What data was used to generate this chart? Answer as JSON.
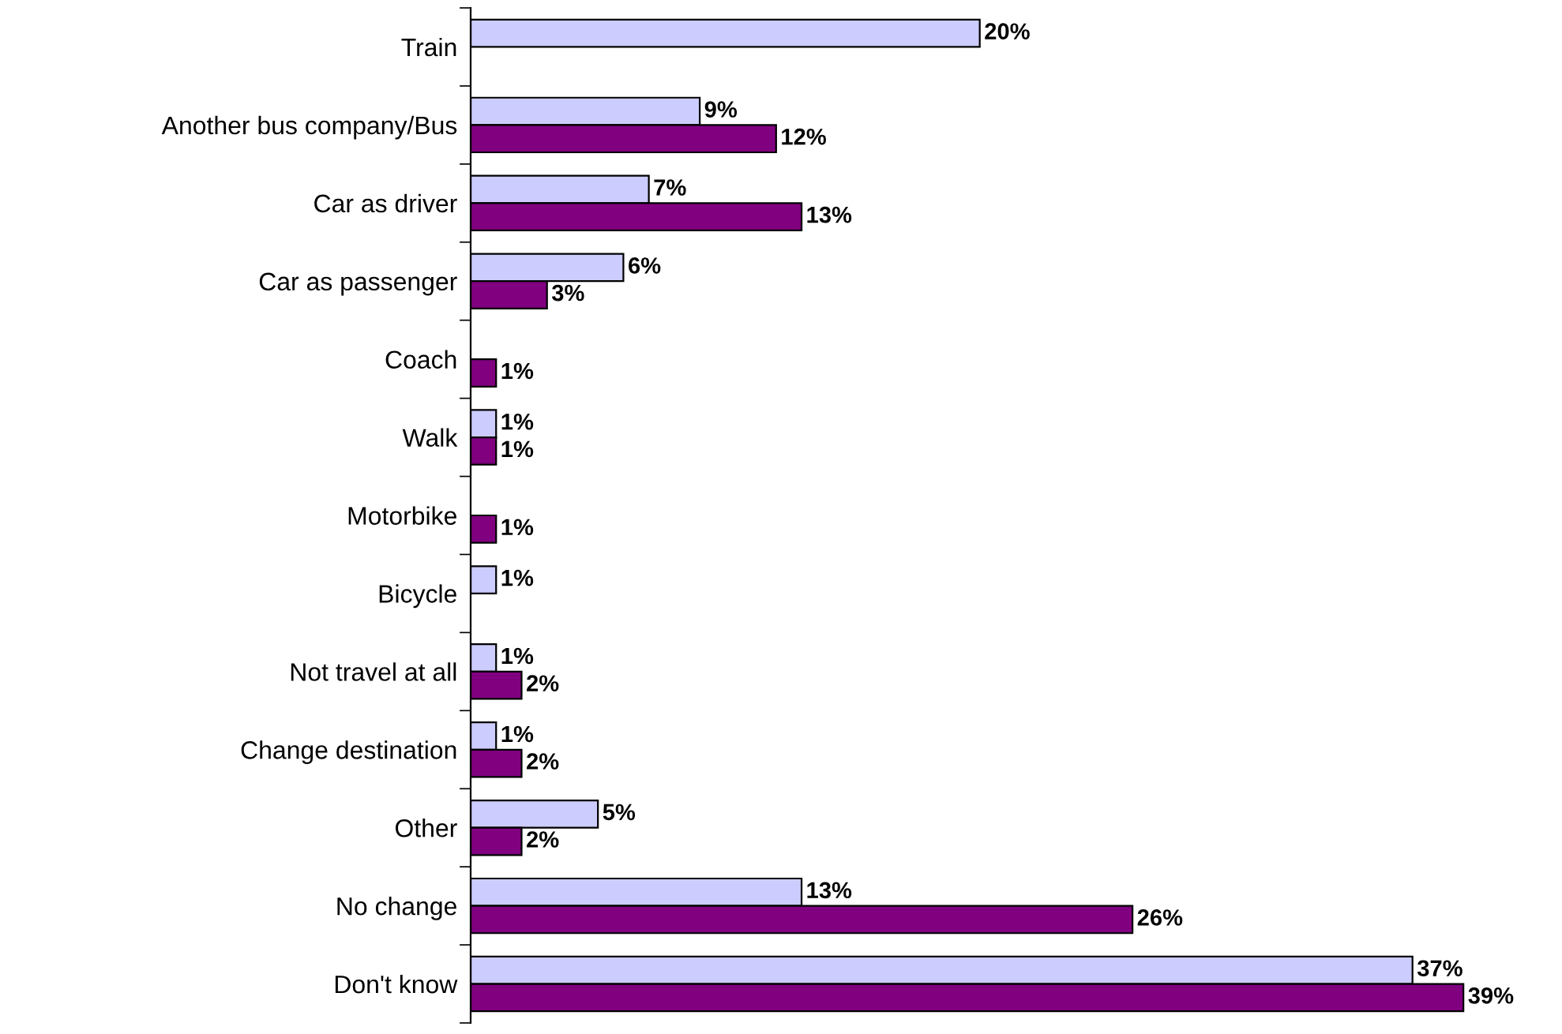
{
  "chart_data": {
    "type": "bar",
    "orientation": "horizontal",
    "categories": [
      "Train",
      "Another bus company/Bus",
      "Car as driver",
      "Car as passenger",
      "Coach",
      "Walk",
      "Motorbike",
      "Bicycle",
      "Not travel at all",
      "Change destination",
      "Other",
      "No change",
      "Don't know"
    ],
    "series": [
      {
        "color": "#ccccff",
        "values": [
          20,
          9,
          7,
          6,
          null,
          1,
          null,
          1,
          1,
          1,
          5,
          13,
          37
        ],
        "value_labels": [
          "20%",
          "9%",
          "7%",
          "6%",
          null,
          "1%",
          null,
          "1%",
          "1%",
          "1%",
          "5%",
          "13%",
          "37%"
        ]
      },
      {
        "color": "#800080",
        "values": [
          null,
          12,
          13,
          3,
          1,
          1,
          1,
          null,
          2,
          2,
          2,
          26,
          39
        ],
        "value_labels": [
          null,
          "12%",
          "13%",
          "3%",
          "1%",
          "1%",
          "1%",
          null,
          "2%",
          "2%",
          "2%",
          "26%",
          "39%"
        ]
      }
    ],
    "tick_labels": "y",
    "grid": false,
    "legend": false
  }
}
